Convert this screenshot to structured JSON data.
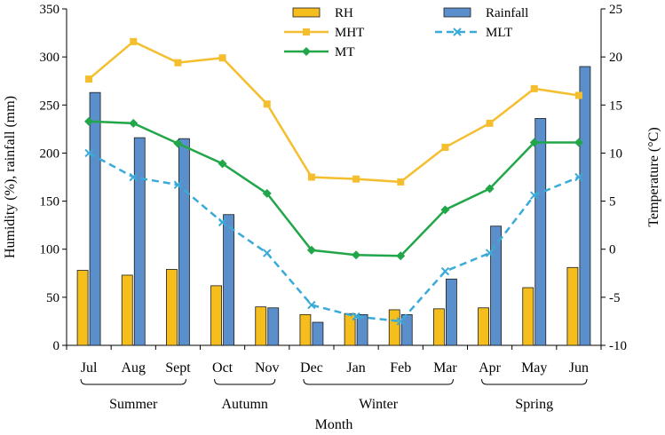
{
  "chart_data": {
    "type": "bar+line",
    "title": "",
    "categories": [
      "Jul",
      "Aug",
      "Sept",
      "Oct",
      "Nov",
      "Dec",
      "Jan",
      "Feb",
      "Mar",
      "Apr",
      "May",
      "Jun"
    ],
    "seasons": [
      {
        "name": "Summer",
        "months": [
          "Jul",
          "Aug",
          "Sept"
        ]
      },
      {
        "name": "Autumn",
        "months": [
          "Oct",
          "Nov"
        ]
      },
      {
        "name": "Winter",
        "months": [
          "Dec",
          "Jan",
          "Feb",
          "Mar"
        ]
      },
      {
        "name": "Spring",
        "months": [
          "Apr",
          "May",
          "Jun"
        ]
      }
    ],
    "xlabel": "Month",
    "ylabel_left": "Humidity (%), rainfall (mm)",
    "ylabel_right": "Temperature (°C)",
    "ylim_left": [
      0,
      350
    ],
    "yticks_left": [
      0,
      50,
      100,
      150,
      200,
      250,
      300,
      350
    ],
    "ylim_right": [
      -10,
      25
    ],
    "yticks_right": [
      -10,
      -5,
      0,
      5,
      10,
      15,
      20,
      25
    ],
    "bar_series": [
      {
        "name": "RH",
        "color": "#F5BE1C",
        "values": [
          78,
          73,
          79,
          62,
          40,
          32,
          33,
          37,
          38,
          39,
          60,
          81
        ]
      },
      {
        "name": "Rainfall",
        "color": "#5B8FCB",
        "values": [
          263,
          216,
          215,
          136,
          39,
          24,
          32,
          32,
          69,
          124,
          236,
          290
        ]
      }
    ],
    "line_series": [
      {
        "name": "MHT",
        "color": "#F5BE2E",
        "marker": "square",
        "dashed": false,
        "values": [
          17.7,
          21.6,
          19.4,
          19.9,
          15.1,
          7.5,
          7.3,
          7.0,
          10.6,
          13.1,
          16.7,
          16.0
        ]
      },
      {
        "name": "MT",
        "color": "#22A64A",
        "marker": "diamond",
        "dashed": false,
        "values": [
          13.3,
          13.1,
          11.0,
          8.9,
          5.8,
          -0.1,
          -0.6,
          -0.7,
          4.1,
          6.3,
          11.1,
          11.1
        ]
      },
      {
        "name": "MLT",
        "color": "#3AAAD8",
        "marker": "x",
        "dashed": true,
        "values": [
          10.0,
          7.5,
          6.7,
          2.8,
          -0.4,
          -5.8,
          -7.0,
          -7.5,
          -2.3,
          -0.4,
          5.6,
          7.5
        ]
      }
    ],
    "legend": [
      "RH",
      "Rainfall",
      "MHT",
      "MLT",
      "MT"
    ],
    "legend_position": "top-center"
  }
}
